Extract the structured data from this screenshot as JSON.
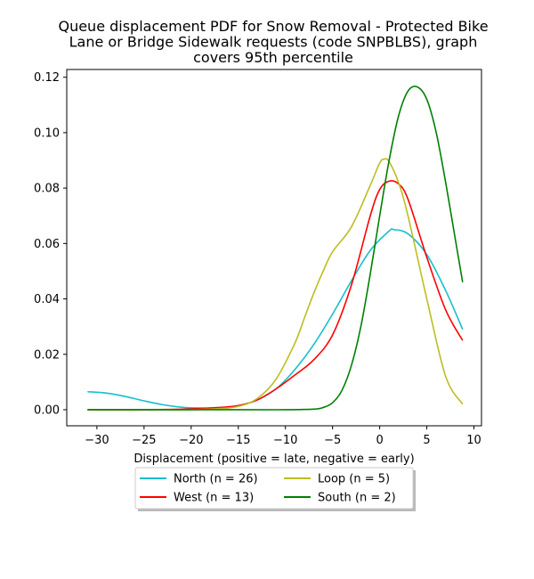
{
  "chart_data": {
    "type": "line",
    "title_lines": [
      "Queue displacement PDF for Snow Removal - Protected Bike",
      "Lane or Bridge Sidewalk  requests (code SNPBLBS), graph",
      "covers 95th percentile"
    ],
    "xlabel": "Displacement (positive = late, negative = early)",
    "ylabel": "",
    "xlim": [
      -33.2,
      10.8
    ],
    "ylim": [
      -0.0058,
      0.1228
    ],
    "xticks": [
      -30,
      -25,
      -20,
      -15,
      -10,
      -5,
      0,
      5,
      10
    ],
    "xtick_labels": [
      "−30",
      "−25",
      "−20",
      "−15",
      "−10",
      "−5",
      "0",
      "5",
      "10"
    ],
    "yticks": [
      0.0,
      0.02,
      0.04,
      0.06,
      0.08,
      0.1,
      0.12
    ],
    "ytick_labels": [
      "0.00",
      "0.02",
      "0.04",
      "0.06",
      "0.08",
      "0.10",
      "0.12"
    ],
    "grid": false,
    "legend_placement": "below-center",
    "series": [
      {
        "name": "North (n = 26)",
        "color": "#17becf",
        "x": [
          -31,
          -29,
          -27,
          -25,
          -23,
          -21,
          -19,
          -17,
          -15,
          -13,
          -11,
          -9,
          -7,
          -5,
          -3,
          -1,
          1,
          1.5,
          3,
          5,
          7,
          8.8
        ],
        "y": [
          0.0065,
          0.006,
          0.0048,
          0.0032,
          0.0018,
          0.0009,
          0.0006,
          0.0007,
          0.0014,
          0.0035,
          0.0075,
          0.0145,
          0.0235,
          0.0345,
          0.0465,
          0.0575,
          0.0645,
          0.065,
          0.0635,
          0.056,
          0.043,
          0.029
        ]
      },
      {
        "name": "West (n = 13)",
        "color": "#ff0000",
        "x": [
          -31,
          -25,
          -20,
          -17,
          -15,
          -13,
          -11,
          -9,
          -7,
          -5,
          -3,
          -1,
          0,
          1,
          2,
          3,
          5,
          7,
          8.8
        ],
        "y": [
          0.0,
          0.0,
          0.0003,
          0.0008,
          0.0015,
          0.0035,
          0.0075,
          0.0125,
          0.018,
          0.027,
          0.045,
          0.07,
          0.0795,
          0.0825,
          0.0815,
          0.076,
          0.055,
          0.036,
          0.025
        ]
      },
      {
        "name": "Loop (n = 5)",
        "color": "#bcbd22",
        "x": [
          -31,
          -25,
          -20,
          -17,
          -15,
          -13,
          -11,
          -9,
          -8,
          -7,
          -6,
          -5,
          -3,
          -1,
          0,
          0.5,
          1,
          2,
          3,
          5,
          7,
          8.8
        ],
        "y": [
          0.0,
          0.0,
          0.0,
          0.0004,
          0.0012,
          0.004,
          0.011,
          0.024,
          0.033,
          0.042,
          0.05,
          0.057,
          0.066,
          0.081,
          0.089,
          0.0905,
          0.0895,
          0.082,
          0.07,
          0.04,
          0.012,
          0.002
        ]
      },
      {
        "name": "South (n = 2)",
        "color": "#008000",
        "x": [
          -31,
          -15,
          -10,
          -7,
          -6,
          -5,
          -4,
          -3,
          -2,
          -1,
          0,
          1,
          2,
          3,
          4,
          5,
          6,
          7,
          8,
          8.8
        ],
        "y": [
          0.0,
          0.0,
          0.0,
          0.0002,
          0.0008,
          0.0025,
          0.007,
          0.016,
          0.03,
          0.049,
          0.07,
          0.09,
          0.106,
          0.115,
          0.1165,
          0.112,
          0.1,
          0.082,
          0.062,
          0.046
        ]
      }
    ]
  }
}
